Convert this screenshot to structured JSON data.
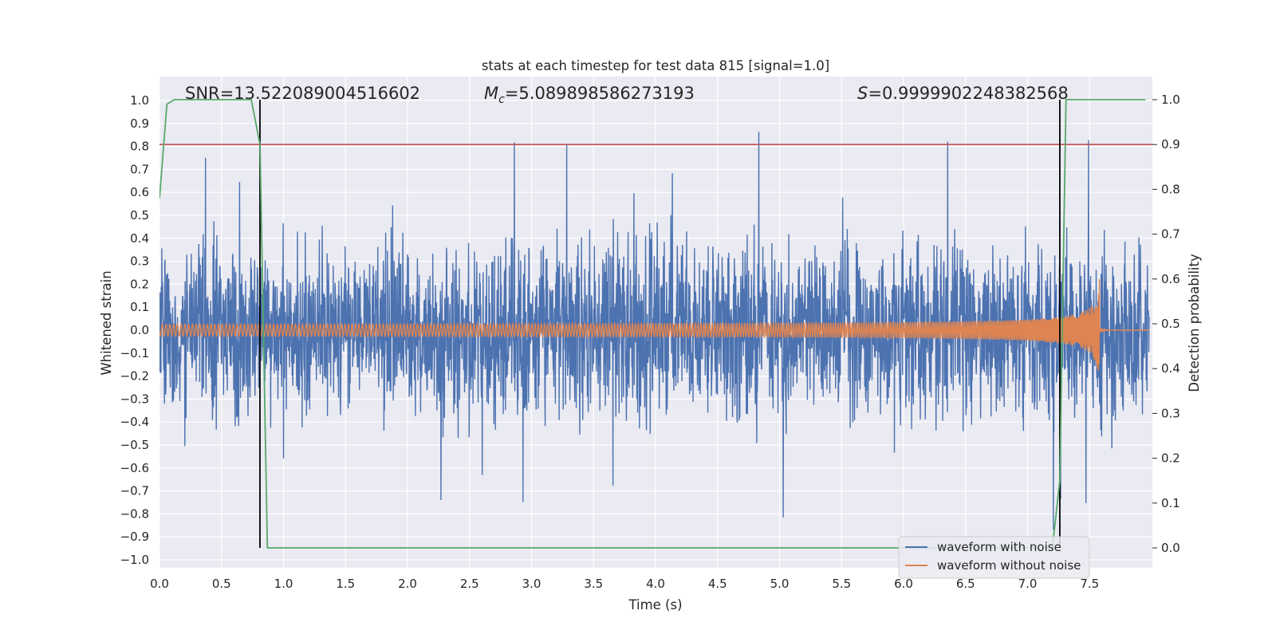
{
  "chart_data": {
    "type": "line",
    "title": "stats at each timestep for test data 815 [signal=1.0]",
    "xlabel": "Time (s)",
    "ylabel": "Whitened strain",
    "ylabel_right": "Detection probability",
    "xlim": [
      0.0,
      8.0
    ],
    "ylim": [
      -1.05,
      1.05
    ],
    "ylim_right": [
      -0.05,
      1.05
    ],
    "x_ticks": [
      "0.0",
      "0.5",
      "1.0",
      "1.5",
      "2.0",
      "2.5",
      "3.0",
      "3.5",
      "4.0",
      "4.5",
      "5.0",
      "5.5",
      "6.0",
      "6.5",
      "7.0",
      "7.5"
    ],
    "y_ticks": [
      "−1.0",
      "−0.9",
      "−0.8",
      "−0.7",
      "−0.6",
      "−0.5",
      "−0.4",
      "−0.3",
      "−0.2",
      "−0.1",
      "0.0",
      "0.1",
      "0.2",
      "0.3",
      "0.4",
      "0.5",
      "0.6",
      "0.7",
      "0.8",
      "0.9",
      "1.0"
    ],
    "y_ticks_right": [
      "0.0",
      "0.1",
      "0.2",
      "0.3",
      "0.4",
      "0.5",
      "0.6",
      "0.7",
      "0.8",
      "0.9",
      "1.0"
    ],
    "annotations": {
      "snr": "SNR=13.522089004516602",
      "mc_symbol": "M",
      "mc_sub": "c",
      "mc_value": "=5.089898586273193",
      "s_symbol": "S",
      "s_value": "=0.9999902248382568"
    },
    "threshold": {
      "value": 0.9,
      "axis": "right",
      "color": "#c44e52"
    },
    "vertical_markers": [
      0.81,
      7.26
    ],
    "series": [
      {
        "name": "waveform with noise",
        "color": "#4c72b0",
        "kind": "noise",
        "envelope": 0.45,
        "spike_max": 1.0,
        "spike_min": -0.95
      },
      {
        "name": "waveform without noise",
        "color": "#dd8452",
        "kind": "chirp",
        "start_amplitude": 0.02,
        "end_amplitude": 0.23,
        "merger_time": 7.58
      },
      {
        "name": "detection probability",
        "color": "#55a868",
        "axis": "right",
        "x": [
          0.0,
          0.06,
          0.12,
          0.5,
          0.74,
          0.81,
          0.87,
          3.0,
          6.0,
          7.2,
          7.26,
          7.31,
          7.95
        ],
        "values": [
          0.78,
          0.99,
          1.0,
          1.0,
          1.0,
          0.9,
          0.0,
          0.0,
          0.0,
          0.0,
          0.15,
          1.0,
          1.0
        ]
      }
    ],
    "legend": {
      "position": "lower-right",
      "entries": [
        "waveform with noise",
        "waveform without noise"
      ]
    },
    "grid": true
  }
}
